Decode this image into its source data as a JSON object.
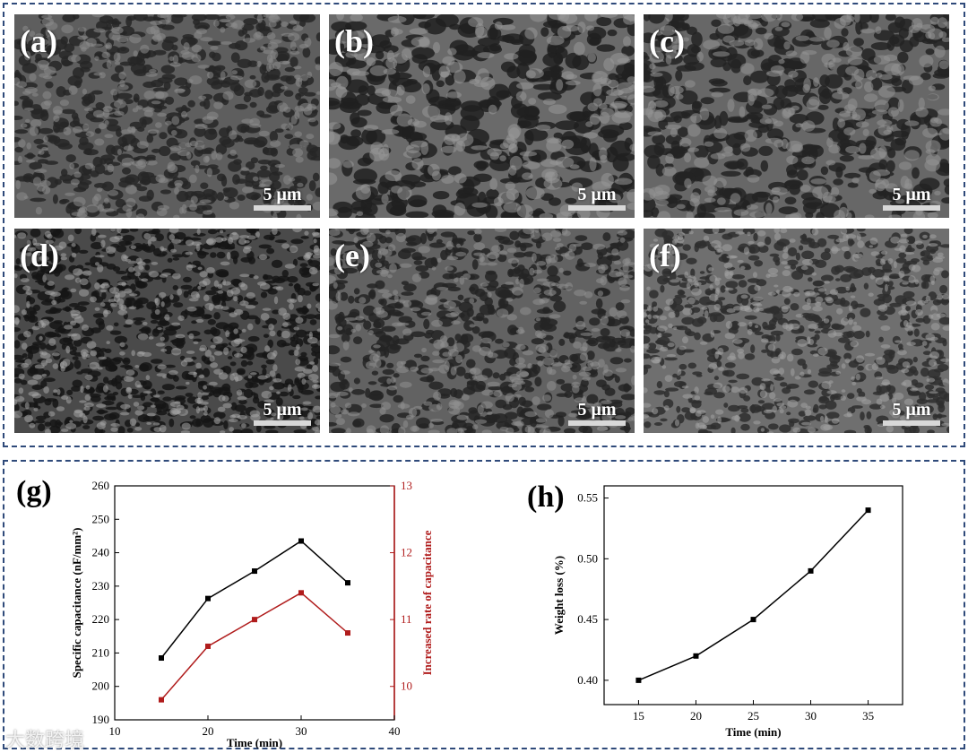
{
  "micrographs": [
    {
      "label": "(a)",
      "scale": "5 μm",
      "base": "#5e5e5e",
      "pore": "#262626",
      "grain": "#8c8c8c"
    },
    {
      "label": "(b)",
      "scale": "5 μm",
      "base": "#6a6a6a",
      "pore": "#202020",
      "grain": "#979797"
    },
    {
      "label": "(c)",
      "scale": "5 μm",
      "base": "#676767",
      "pore": "#232323",
      "grain": "#939393"
    },
    {
      "label": "(d)",
      "scale": "5 μm",
      "base": "#4a4a4a",
      "pore": "#151515",
      "grain": "#a6a6a6"
    },
    {
      "label": "(e)",
      "scale": "5 μm",
      "base": "#626262",
      "pore": "#242424",
      "grain": "#909090"
    },
    {
      "label": "(f)",
      "scale": "5 μm",
      "base": "#6f6f6f",
      "pore": "#2e2e2e",
      "grain": "#a3a3a3"
    }
  ],
  "chart_data": [
    {
      "panel": "(g)",
      "type": "line",
      "xlabel": "Time (min)",
      "ylabel": "Specific capacitance (nF/mm²)",
      "y2label": "Increased rate of capacitance",
      "xlim": [
        10,
        40
      ],
      "xticks": [
        10,
        20,
        30,
        40
      ],
      "ylim": [
        190,
        260
      ],
      "yticks": [
        190,
        200,
        210,
        220,
        230,
        240,
        250,
        260
      ],
      "y2lim": [
        9.5,
        13
      ],
      "y2ticks": [
        10,
        11,
        12,
        13
      ],
      "x": [
        15,
        20,
        25,
        30,
        35
      ],
      "series": [
        {
          "axis": "left",
          "color": "#000000",
          "values": [
            208.5,
            226.3,
            234.5,
            243.5,
            231.0
          ]
        },
        {
          "axis": "right",
          "color": "#b01c1c",
          "values": [
            9.8,
            10.6,
            11.0,
            11.4,
            10.8
          ]
        }
      ]
    },
    {
      "panel": "(h)",
      "type": "line",
      "xlabel": "Time (min)",
      "ylabel": "Weight loss (%)",
      "xlim": [
        12,
        38
      ],
      "xticks": [
        15,
        20,
        25,
        30,
        35
      ],
      "ylim": [
        0.38,
        0.56
      ],
      "yticks": [
        0.4,
        0.45,
        0.5,
        0.55
      ],
      "x": [
        15,
        20,
        25,
        30,
        35
      ],
      "series": [
        {
          "color": "#000000",
          "values": [
            0.4,
            0.42,
            0.45,
            0.49,
            0.54
          ]
        }
      ]
    }
  ],
  "watermark": "大数跨境"
}
